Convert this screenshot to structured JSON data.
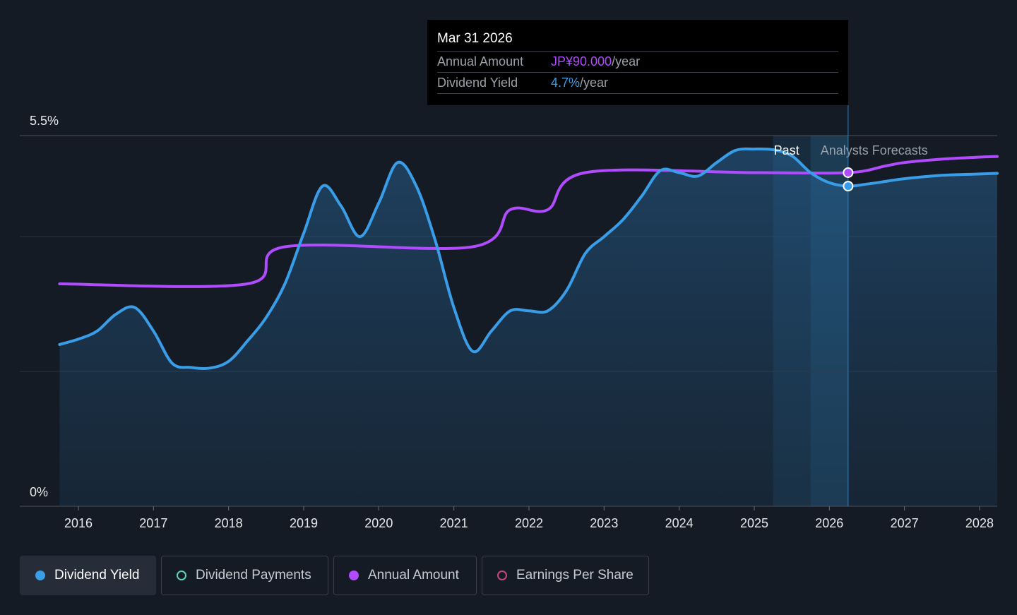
{
  "tooltip": {
    "date": "Mar 31 2026",
    "rows": [
      {
        "label": "Annual Amount",
        "value": "JP¥90.000",
        "unit": "/year"
      },
      {
        "label": "Dividend Yield",
        "value": "4.7%",
        "unit": "/year"
      }
    ]
  },
  "legend": [
    {
      "label": "Dividend Yield",
      "color": "#3a9de8",
      "filled": true,
      "active": true
    },
    {
      "label": "Dividend Payments",
      "color": "#5fd0c0",
      "filled": false,
      "active": false
    },
    {
      "label": "Annual Amount",
      "color": "#b04bff",
      "filled": true,
      "active": false
    },
    {
      "label": "Earnings Per Share",
      "color": "#c3487c",
      "filled": false,
      "active": false
    }
  ],
  "chart_data": {
    "type": "line",
    "y_axis_labels": [
      "5.5%",
      "0%"
    ],
    "ylim": [
      0,
      5.5
    ],
    "xlim": [
      2015.75,
      2028.25
    ],
    "x_ticks": [
      2016,
      2017,
      2018,
      2019,
      2020,
      2021,
      2022,
      2023,
      2024,
      2025,
      2026,
      2027,
      2028
    ],
    "x_tick_labels": [
      "2016",
      "2017",
      "2018",
      "2019",
      "2020",
      "2021",
      "2022",
      "2023",
      "2024",
      "2025",
      "2026",
      "2027",
      "2028"
    ],
    "gridlines_y": [
      5.5,
      4.0,
      2.0
    ],
    "past_label": "Past",
    "forecast_label": "Analysts Forecasts",
    "past_band": [
      2025.25,
      2025.75
    ],
    "forecast_band": [
      2025.75,
      2026.25
    ],
    "cursor_x": 2026.25,
    "colors": {
      "yield": "#3a9de8",
      "annual": "#b04bff"
    },
    "series": [
      {
        "name": "Dividend Yield",
        "points": [
          [
            2015.75,
            2.4
          ],
          [
            2016.0,
            2.48
          ],
          [
            2016.25,
            2.6
          ],
          [
            2016.5,
            2.85
          ],
          [
            2016.75,
            2.95
          ],
          [
            2017.0,
            2.6
          ],
          [
            2017.25,
            2.12
          ],
          [
            2017.5,
            2.06
          ],
          [
            2017.75,
            2.05
          ],
          [
            2018.0,
            2.15
          ],
          [
            2018.25,
            2.45
          ],
          [
            2018.5,
            2.8
          ],
          [
            2018.75,
            3.3
          ],
          [
            2019.0,
            4.05
          ],
          [
            2019.25,
            4.75
          ],
          [
            2019.5,
            4.45
          ],
          [
            2019.75,
            4.0
          ],
          [
            2020.0,
            4.5
          ],
          [
            2020.25,
            5.1
          ],
          [
            2020.5,
            4.75
          ],
          [
            2020.75,
            3.95
          ],
          [
            2021.0,
            2.95
          ],
          [
            2021.25,
            2.3
          ],
          [
            2021.5,
            2.6
          ],
          [
            2021.75,
            2.9
          ],
          [
            2022.0,
            2.9
          ],
          [
            2022.25,
            2.9
          ],
          [
            2022.5,
            3.2
          ],
          [
            2022.75,
            3.75
          ],
          [
            2023.0,
            4.0
          ],
          [
            2023.25,
            4.25
          ],
          [
            2023.5,
            4.6
          ],
          [
            2023.75,
            4.98
          ],
          [
            2024.0,
            4.95
          ],
          [
            2024.25,
            4.9
          ],
          [
            2024.5,
            5.1
          ],
          [
            2024.75,
            5.28
          ],
          [
            2025.0,
            5.3
          ],
          [
            2025.25,
            5.29
          ],
          [
            2025.5,
            5.2
          ],
          [
            2025.75,
            4.95
          ],
          [
            2026.0,
            4.8
          ],
          [
            2026.25,
            4.75
          ],
          [
            2026.5,
            4.78
          ],
          [
            2026.75,
            4.82
          ],
          [
            2027.0,
            4.86
          ],
          [
            2027.5,
            4.91
          ],
          [
            2028.0,
            4.93
          ],
          [
            2028.25,
            4.94
          ]
        ]
      },
      {
        "name": "Annual Amount",
        "points": [
          [
            2015.75,
            3.3
          ],
          [
            2018.25,
            3.3
          ],
          [
            2018.75,
            3.85
          ],
          [
            2021.25,
            3.85
          ],
          [
            2021.75,
            4.4
          ],
          [
            2022.25,
            4.4
          ],
          [
            2022.75,
            4.95
          ],
          [
            2025.0,
            4.95
          ],
          [
            2026.25,
            4.95
          ],
          [
            2026.75,
            5.05
          ],
          [
            2027.0,
            5.1
          ],
          [
            2027.5,
            5.15
          ],
          [
            2028.0,
            5.18
          ],
          [
            2028.25,
            5.19
          ]
        ]
      }
    ]
  }
}
